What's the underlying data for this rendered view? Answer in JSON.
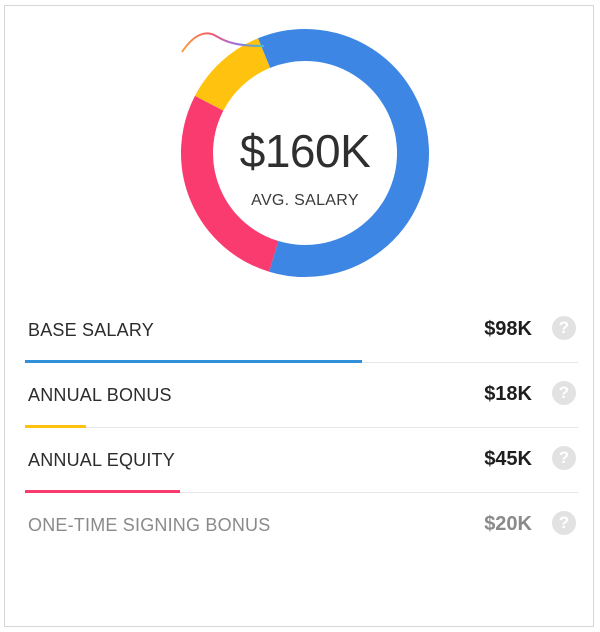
{
  "summary": {
    "amount": "$160K",
    "label": "AVG. SALARY"
  },
  "donut": {
    "segments": [
      {
        "name": "base",
        "value": 98,
        "color": "#3d86e4"
      },
      {
        "name": "equity",
        "value": 45,
        "color": "#f93b6f"
      },
      {
        "name": "bonus",
        "value": 18,
        "color": "#ffc20e"
      }
    ],
    "total": 160
  },
  "rows": [
    {
      "label": "BASE SALARY",
      "value": "$98K",
      "color": "#2f8fd8",
      "fraction": 0.61,
      "muted": false
    },
    {
      "label": "ANNUAL BONUS",
      "value": "$18K",
      "color": "#ffc20e",
      "fraction": 0.11,
      "muted": false
    },
    {
      "label": "ANNUAL EQUITY",
      "value": "$45K",
      "color": "#f93b6f",
      "fraction": 0.28,
      "muted": false
    },
    {
      "label": "ONE-TIME SIGNING BONUS",
      "value": "$20K",
      "color": "",
      "fraction": 0,
      "muted": true
    }
  ],
  "help_icon": "question-circle-icon"
}
